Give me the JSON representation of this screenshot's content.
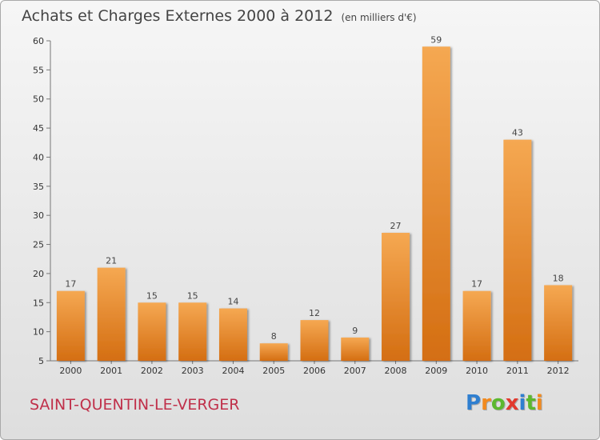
{
  "header": {
    "title": "Achats et Charges Externes 2000 à 2012",
    "subtitle": "(en milliers d'€)"
  },
  "footer": {
    "commune": "SAINT-QUENTIN-LE-VERGER",
    "logo": {
      "letters": [
        "P",
        "r",
        "o",
        "x",
        "i",
        "t",
        "i"
      ],
      "colors": [
        "#2f7fd0",
        "#f28a1e",
        "#5cb82e",
        "#e23a2e",
        "#2f7fd0",
        "#5cb82e",
        "#f28a1e"
      ]
    }
  },
  "chart_data": {
    "type": "bar",
    "title": "Achats et Charges Externes 2000 à 2012",
    "subtitle": "(en milliers d'€)",
    "categories": [
      "2000",
      "2001",
      "2002",
      "2003",
      "2004",
      "2005",
      "2006",
      "2007",
      "2008",
      "2009",
      "2010",
      "2011",
      "2012"
    ],
    "values": [
      17,
      21,
      15,
      15,
      14,
      8,
      12,
      9,
      27,
      59,
      17,
      43,
      18
    ],
    "ylim": [
      5,
      60
    ],
    "yticks": [
      5,
      10,
      15,
      20,
      25,
      30,
      35,
      40,
      45,
      50,
      55,
      60
    ],
    "grid": false,
    "bar_color": "#f0922f",
    "xlabel": "",
    "ylabel": ""
  }
}
